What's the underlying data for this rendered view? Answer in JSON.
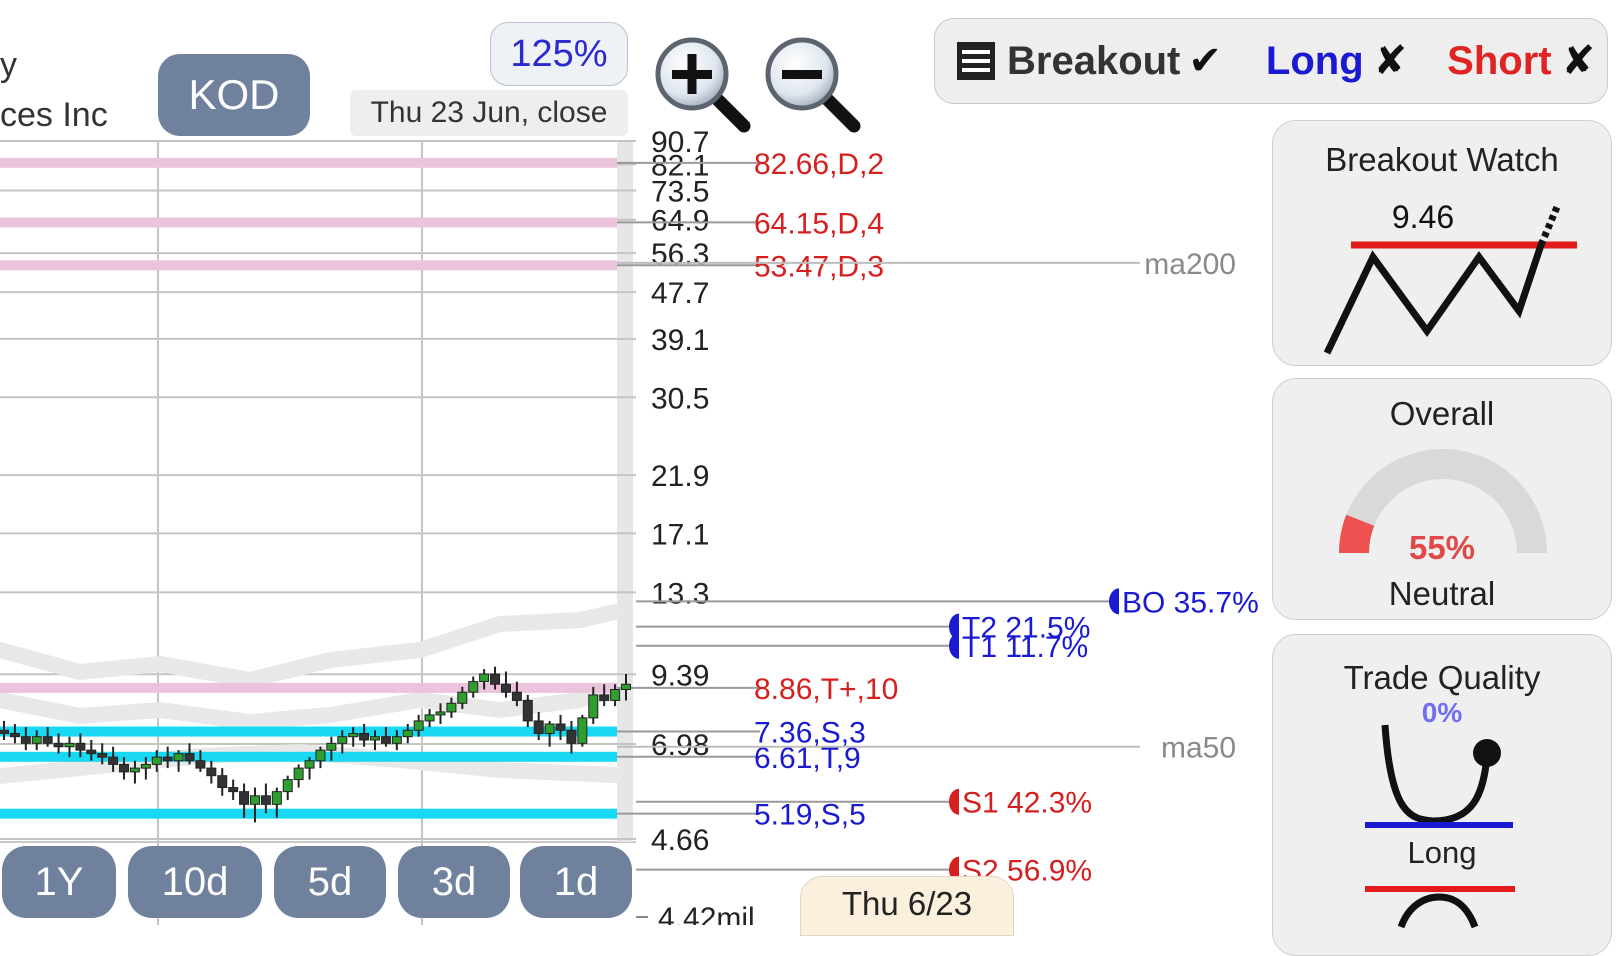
{
  "header": {
    "company_line1": "y",
    "company_line2": "ces Inc",
    "ticker": "KOD",
    "zoom": "125%",
    "date_label": "Thu 23 Jun, close"
  },
  "strategy": {
    "breakout_label": "Breakout",
    "breakout_mark": "✔",
    "long_label": "Long",
    "long_mark": "✘",
    "short_label": "Short",
    "short_mark": "✘"
  },
  "panels": {
    "breakout_watch": {
      "title": "Breakout Watch",
      "value": "9.46"
    },
    "overall": {
      "title": "Overall",
      "percent": "55%",
      "verdict": "Neutral",
      "percent_value": 55
    },
    "trade_quality": {
      "title": "Trade Quality",
      "percent": "0%",
      "label": "Long"
    }
  },
  "ranges": [
    "1Y",
    "10d",
    "5d",
    "3d",
    "1d"
  ],
  "bottom_date": "Thu 6/23",
  "colors": {
    "resistance_band": "#ecc3dc",
    "support_band": "#18d8f3",
    "red_label": "#d61f1f",
    "blue_label": "#1a1ad2",
    "candle_up": "#2e9e2e",
    "candle_down": "#333333",
    "badge": "#6f819c"
  },
  "chart_data": {
    "type": "candlestick",
    "scale": "log",
    "y_ticks": [
      "90.7",
      "82.1",
      "73.5",
      "64.9",
      "56.3",
      "47.7",
      "39.1",
      "30.5",
      "21.9",
      "17.1",
      "13.3",
      "9.39",
      "6.98",
      "4.66"
    ],
    "y_tick_values": [
      90.7,
      82.1,
      73.5,
      64.9,
      56.3,
      47.7,
      39.1,
      30.5,
      21.9,
      17.1,
      13.3,
      9.39,
      6.98,
      4.66
    ],
    "volume_label": "4.42mil",
    "resistance_levels": [
      {
        "value": 82.66,
        "label": "82.66,D,2"
      },
      {
        "value": 64.15,
        "label": "64.15,D,4"
      },
      {
        "value": 53.47,
        "label": "53.47,D,3"
      },
      {
        "value": 8.86,
        "label": "8.86,T+,10"
      }
    ],
    "support_levels": [
      {
        "value": 7.36,
        "label": "7.36,S,3"
      },
      {
        "value": 6.61,
        "label": "6.61,T,9"
      },
      {
        "value": 5.19,
        "label": "5.19,S,5"
      }
    ],
    "moving_averages": [
      {
        "name": "ma200",
        "value": 54.0
      },
      {
        "name": "ma50",
        "value": 6.9
      }
    ],
    "targets": [
      {
        "label": "BO 35.7%",
        "kind": "breakout",
        "value": 12.8
      },
      {
        "label": "T2 21.5%",
        "kind": "target",
        "value": 11.5
      },
      {
        "label": "T1 11.7%",
        "kind": "target",
        "value": 10.6
      },
      {
        "label": "S1 42.3%",
        "kind": "stop",
        "value": 5.46
      },
      {
        "label": "S2 56.9%",
        "kind": "stop",
        "value": 4.09
      }
    ],
    "candles": [
      [
        7.4,
        7.7,
        7.1,
        7.3
      ],
      [
        7.3,
        7.6,
        7.0,
        7.2
      ],
      [
        7.2,
        7.5,
        6.8,
        7.0
      ],
      [
        7.0,
        7.4,
        6.8,
        7.2
      ],
      [
        7.2,
        7.5,
        6.9,
        7.0
      ],
      [
        7.0,
        7.3,
        6.7,
        6.9
      ],
      [
        6.9,
        7.2,
        6.6,
        7.0
      ],
      [
        7.0,
        7.3,
        6.6,
        6.8
      ],
      [
        6.8,
        7.1,
        6.5,
        6.7
      ],
      [
        6.7,
        7.0,
        6.4,
        6.6
      ],
      [
        6.6,
        6.9,
        6.2,
        6.4
      ],
      [
        6.4,
        6.6,
        6.0,
        6.2
      ],
      [
        6.2,
        6.5,
        5.9,
        6.3
      ],
      [
        6.3,
        6.6,
        6.0,
        6.4
      ],
      [
        6.4,
        6.8,
        6.2,
        6.6
      ],
      [
        6.6,
        6.9,
        6.3,
        6.5
      ],
      [
        6.5,
        6.8,
        6.2,
        6.7
      ],
      [
        6.7,
        7.0,
        6.4,
        6.5
      ],
      [
        6.5,
        6.8,
        6.2,
        6.3
      ],
      [
        6.3,
        6.5,
        5.9,
        6.1
      ],
      [
        6.1,
        6.3,
        5.6,
        5.8
      ],
      [
        5.8,
        6.0,
        5.5,
        5.7
      ],
      [
        5.7,
        5.9,
        5.1,
        5.4
      ],
      [
        5.4,
        5.8,
        5.0,
        5.6
      ],
      [
        5.6,
        5.9,
        5.2,
        5.4
      ],
      [
        5.4,
        5.8,
        5.1,
        5.7
      ],
      [
        5.7,
        6.1,
        5.5,
        6.0
      ],
      [
        6.0,
        6.4,
        5.8,
        6.3
      ],
      [
        6.3,
        6.6,
        6.0,
        6.5
      ],
      [
        6.5,
        6.9,
        6.3,
        6.8
      ],
      [
        6.8,
        7.2,
        6.5,
        7.0
      ],
      [
        7.0,
        7.4,
        6.7,
        7.2
      ],
      [
        7.2,
        7.5,
        6.9,
        7.3
      ],
      [
        7.3,
        7.6,
        6.9,
        7.1
      ],
      [
        7.1,
        7.4,
        6.8,
        7.2
      ],
      [
        7.2,
        7.5,
        6.9,
        7.0
      ],
      [
        7.0,
        7.4,
        6.8,
        7.2
      ],
      [
        7.2,
        7.6,
        7.0,
        7.4
      ],
      [
        7.4,
        7.9,
        7.2,
        7.7
      ],
      [
        7.7,
        8.1,
        7.5,
        7.9
      ],
      [
        7.9,
        8.3,
        7.6,
        8.0
      ],
      [
        8.0,
        8.5,
        7.8,
        8.3
      ],
      [
        8.3,
        8.9,
        8.1,
        8.7
      ],
      [
        8.7,
        9.3,
        8.5,
        9.1
      ],
      [
        9.1,
        9.6,
        8.8,
        9.4
      ],
      [
        9.4,
        9.7,
        8.8,
        9.0
      ],
      [
        9.0,
        9.5,
        8.5,
        8.7
      ],
      [
        8.7,
        9.1,
        8.2,
        8.4
      ],
      [
        8.4,
        8.6,
        7.5,
        7.7
      ],
      [
        7.7,
        8.0,
        7.1,
        7.3
      ],
      [
        7.3,
        7.7,
        6.9,
        7.6
      ],
      [
        7.6,
        7.9,
        7.1,
        7.4
      ],
      [
        7.4,
        7.7,
        6.7,
        7.0
      ],
      [
        7.0,
        7.9,
        6.9,
        7.8
      ],
      [
        7.8,
        8.9,
        7.6,
        8.6
      ],
      [
        8.6,
        9.0,
        8.2,
        8.4
      ],
      [
        8.4,
        9.0,
        8.2,
        8.8
      ],
      [
        8.8,
        9.4,
        8.4,
        9.0
      ]
    ]
  }
}
